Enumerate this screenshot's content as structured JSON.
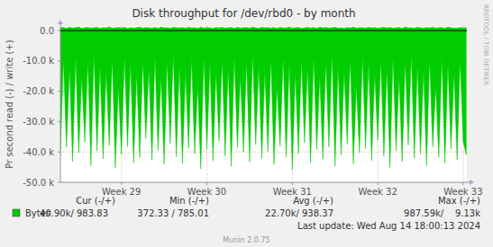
{
  "chart_data": {
    "type": "area",
    "title": "Disk throughput for /dev/rbd0 - by month",
    "y_label": "Pr second read (-) / write (+)",
    "x": [
      0,
      0.25,
      0.5,
      0.75,
      1,
      1.25,
      1.5,
      1.75,
      2,
      2.25,
      2.5,
      2.75,
      3,
      3.25,
      3.5,
      3.75,
      4,
      4.25,
      4.5,
      4.75,
      5,
      5.25,
      5.5,
      5.75,
      6,
      6.25,
      6.5,
      6.75,
      7,
      7.25,
      7.5,
      7.75,
      8,
      8.25,
      8.5,
      8.75,
      9,
      9.25,
      9.5,
      9.75,
      10,
      10.25,
      10.5,
      10.75,
      11,
      11.25,
      11.5,
      11.75,
      12,
      12.25,
      12.5,
      12.75,
      13,
      13.25,
      13.5,
      13.75,
      14,
      14.25,
      14.5,
      14.75,
      15,
      15.25,
      15.5,
      15.75,
      16,
      16.25,
      16.5,
      16.75,
      17,
      17.25,
      17.5,
      17.75,
      18,
      18.25,
      18.5,
      18.75,
      19,
      19.25,
      19.5,
      19.75,
      20,
      20.25,
      20.5,
      20.75,
      21,
      21.25,
      21.5,
      21.75,
      22,
      22.25,
      22.5,
      22.75,
      23,
      23.25,
      23.5,
      23.75,
      24,
      24.25,
      24.5,
      24.75,
      25,
      25.25,
      25.5,
      25.75,
      26,
      26.25,
      26.5,
      26.75,
      27,
      27.25,
      27.5,
      27.75,
      28,
      28.25,
      28.5,
      28.75,
      29,
      29.25,
      29.5,
      29.75,
      30,
      30.25,
      30.5,
      30.75,
      31,
      31.25,
      31.5,
      31.75,
      32,
      32.25,
      32.5,
      32.75,
      33,
      33.25
    ],
    "series": [
      {
        "name": "Bytes",
        "color": "#00cc00",
        "values": [
          -41200,
          -9800,
          -38500,
          -12400,
          -43100,
          -8600,
          -40200,
          -15200,
          -36800,
          -10300,
          -44500,
          -7900,
          -39700,
          -11800,
          -42300,
          -13600,
          -37900,
          -9200,
          -45200,
          -18400,
          -40800,
          -8800,
          -38200,
          -10900,
          -43600,
          -14100,
          -41900,
          -9800,
          -35600,
          -12400,
          -42700,
          -8600,
          -39400,
          -15200,
          -44100,
          -10300,
          -37200,
          -7900,
          -41600,
          -11800,
          -43800,
          -13600,
          -38800,
          -9200,
          -40500,
          -18400,
          -45600,
          -8800,
          -39100,
          -10900,
          -42900,
          -14100,
          -36400,
          -9800,
          -41300,
          -12400,
          -44800,
          -8600,
          -38600,
          -15200,
          -40100,
          -10300,
          -43300,
          -7900,
          -37600,
          -11800,
          -42100,
          -13600,
          -39900,
          -9200,
          -44200,
          -18400,
          -38100,
          -8800,
          -41700,
          -10900,
          -45900,
          -14100,
          -40600,
          -9800,
          -36900,
          -12400,
          -43500,
          -8600,
          -39300,
          -15200,
          -42500,
          -10300,
          -38400,
          -7900,
          -44700,
          -11800,
          -41100,
          -13600,
          -37500,
          -9200,
          -43900,
          -18400,
          -40300,
          -8800,
          -38900,
          -10900,
          -42800,
          -14100,
          -36200,
          -9800,
          -41400,
          -12400,
          -45100,
          -8600,
          -39600,
          -15200,
          -43200,
          -10300,
          -37800,
          -7900,
          -42000,
          -11800,
          -40700,
          -13600,
          -44400,
          -9200,
          -38300,
          -18400,
          -41800,
          -8800,
          -43700,
          -10900,
          -39000,
          -14100,
          -42600,
          -9800,
          -36600,
          -40900
        ]
      },
      {
        "color": "#00cc00",
        "values": [
          920,
          1050,
          780,
          1130,
          860,
          990,
          1210,
          740,
          950,
          1080,
          830,
          970,
          1100,
          760,
          1010,
          880,
          1240,
          800,
          940,
          1060,
          900,
          1150,
          720,
          1020,
          870,
          960,
          1190,
          810,
          1040,
          930,
          850,
          1080,
          790,
          1170,
          900,
          1000,
          760,
          1120,
          950,
          880,
          1030,
          820,
          1140,
          890,
          970,
          750,
          1200,
          860,
          1010,
          940,
          780,
          1090,
          920,
          1160,
          840,
          990,
          1050,
          730,
          1110,
          870,
          960,
          1020,
          810,
          1180,
          900,
          770,
          1130,
          950,
          1000,
          860,
          1070,
          790,
          1150,
          880,
          940,
          1210,
          820,
          990,
          1040,
          760,
          910,
          1100,
          850,
          1020,
          780,
          1170,
          930,
          1060,
          800,
          980,
          1120,
          870,
          950,
          740,
          1090,
          900,
          1190,
          830,
          1010,
          960,
          800,
          1140,
          920,
          1050,
          770,
          990,
          1160,
          880,
          1030,
          850,
          940,
          1080,
          760,
          1200,
          890,
          1010,
          820,
          1130,
          970,
          790,
          1060,
          910,
          1150,
          840,
          980,
          1040,
          750,
          1180,
          920,
          870,
          870,
          1020,
          910,
          984
        ]
      }
    ],
    "xlim": [
      0,
      33.3
    ],
    "xticks": [
      {
        "value": 5,
        "label": "Week 29"
      },
      {
        "value": 12,
        "label": "Week 30"
      },
      {
        "value": 19,
        "label": "Week 31"
      },
      {
        "value": 26,
        "label": "Week 32"
      },
      {
        "value": 33,
        "label": "Week 33"
      }
    ],
    "ylim": [
      -50000,
      1500
    ],
    "yticks": [
      {
        "value": 0,
        "label": "0.0"
      },
      {
        "value": -10000,
        "label": "-10.0 k"
      },
      {
        "value": -20000,
        "label": "-20.0 k"
      },
      {
        "value": -30000,
        "label": "-30.0 k"
      },
      {
        "value": -40000,
        "label": "-40.0 k"
      },
      {
        "value": -50000,
        "label": "-50.0 k"
      }
    ],
    "grid": true,
    "legend": "bottom-left",
    "stats": {
      "columns": [
        "Cur (-/+)",
        "Min (-/+)",
        "Avg (-/+)",
        "Max (-/+)"
      ],
      "values": [
        "40.90k/ 983.83",
        "372.33 / 785.01",
        "22.70k/ 938.37",
        "987.59k/    9.13k"
      ]
    },
    "last_update": "Last update: Wed Aug 14 18:00:13 2024",
    "footer": "Munin 2.0.75",
    "watermark": "RRDTOOL / TOBI OETIKER"
  }
}
